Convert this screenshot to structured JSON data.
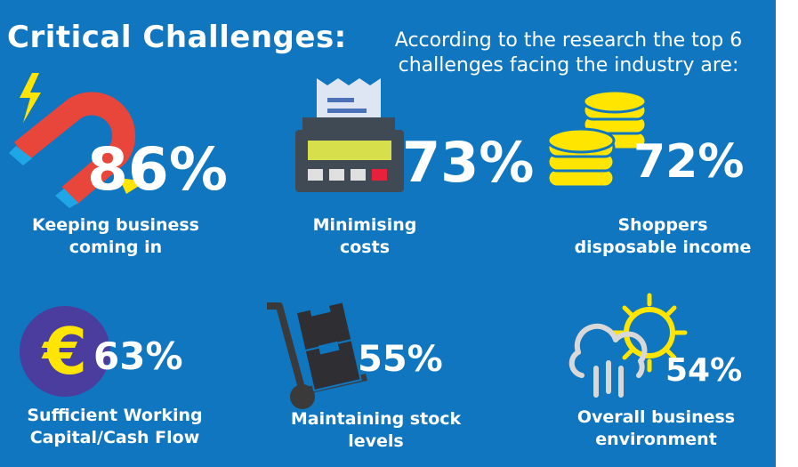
{
  "header": {
    "title": "Critical Challenges:",
    "subtitle_line1": "According to the research the top 6",
    "subtitle_line2": "challenges facing the industry are:"
  },
  "challenges": [
    {
      "percent": "86%",
      "line1": "Keeping business",
      "line2": "coming in",
      "icon": "magnet-icon"
    },
    {
      "percent": "73%",
      "line1": "Minimising",
      "line2": "costs",
      "icon": "cash-register-icon"
    },
    {
      "percent": "72%",
      "line1": "Shoppers",
      "line2": "disposable income",
      "icon": "coins-icon"
    },
    {
      "percent": "63%",
      "line1": "Sufficient Working",
      "line2": "Capital/Cash Flow",
      "icon": "euro-icon"
    },
    {
      "percent": "55%",
      "line1": "Maintaining stock",
      "line2": "levels",
      "icon": "hand-truck-icon"
    },
    {
      "percent": "54%",
      "line1": "Overall business",
      "line2": "environment",
      "icon": "weather-icon"
    }
  ],
  "colors": {
    "background": "#0f76bf",
    "accent_yellow": "#ffe500",
    "magnet_red": "#e8463a",
    "register_green": "#d7e04a",
    "euro_purple": "#4b3d9e"
  }
}
